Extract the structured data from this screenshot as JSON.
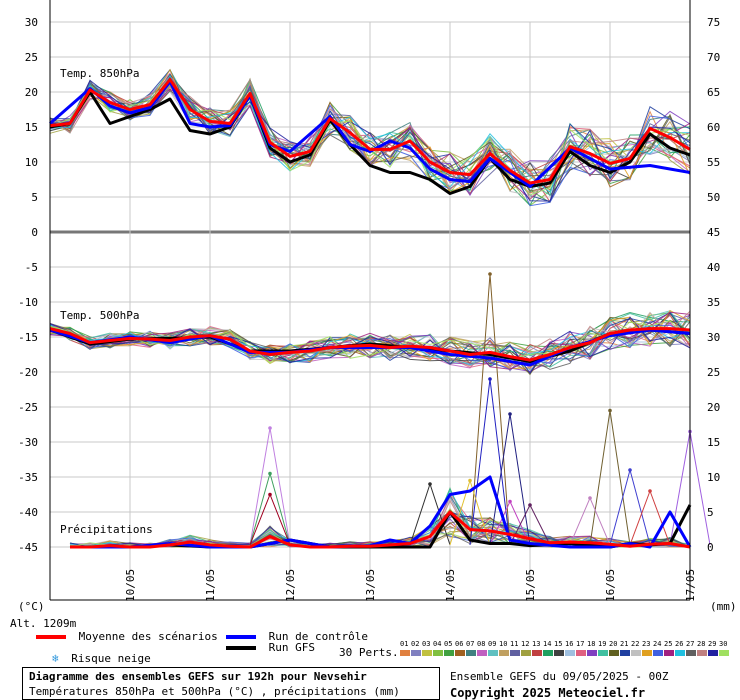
{
  "chart_data": {
    "type": "line",
    "x": [
      "09/05 00Z",
      "09/05 12Z",
      "10/05 00Z",
      "10/05 12Z",
      "11/05 00Z",
      "11/05 12Z",
      "12/05 00Z",
      "12/05 12Z",
      "13/05 00Z",
      "13/05 12Z",
      "14/05 00Z",
      "14/05 12Z",
      "15/05 00Z",
      "15/05 12Z",
      "16/05 00Z",
      "16/05 12Z",
      "17/05 00Z"
    ],
    "date_ticks": [
      "10/05",
      "11/05",
      "12/05",
      "13/05",
      "14/05",
      "15/05",
      "16/05",
      "17/05"
    ],
    "left_axis": {
      "unit": "(°C)",
      "ticks": [
        30,
        25,
        20,
        15,
        10,
        5,
        0,
        -5,
        -10,
        -15,
        -20,
        -25,
        -30,
        -35,
        -40,
        -45
      ]
    },
    "right_axis": {
      "unit": "(mm)",
      "ticks": [
        75,
        70,
        65,
        60,
        55,
        50,
        45,
        40,
        35,
        30,
        25,
        20,
        15,
        10,
        5,
        0
      ]
    },
    "altitude": "Alt. 1209m",
    "panels": {
      "t850": {
        "label": "Temp. 850hPa",
        "ylim": [
          0,
          30
        ],
        "mean": {
          "x": [
            0,
            0.25,
            0.5,
            0.75,
            1,
            1.25,
            1.5,
            1.75,
            2,
            2.25,
            2.5,
            2.75,
            3,
            3.25,
            3.5,
            3.75,
            4,
            4.25,
            4.5,
            4.75,
            5,
            5.25,
            5.5,
            5.75,
            6,
            6.25,
            6.5,
            6.75,
            7,
            7.25,
            7.5,
            7.75,
            8
          ],
          "values": [
            15.2,
            15.5,
            20.3,
            18.5,
            17.5,
            18.2,
            21.8,
            17.5,
            15.8,
            15.5,
            19.8,
            12.8,
            10.8,
            11.5,
            16.2,
            14.2,
            11.8,
            11.8,
            13.0,
            10.0,
            8.5,
            8.2,
            11.2,
            8.8,
            7.0,
            7.5,
            12.2,
            11.2,
            9.8,
            10.5,
            14.8,
            13.5,
            11.8
          ]
        },
        "control": {
          "x": [
            0,
            0.5,
            0.75,
            1,
            1.25,
            1.5,
            1.75,
            2,
            2.25,
            2.5,
            2.75,
            3,
            3.5,
            3.75,
            4,
            4.25,
            4.5,
            4.75,
            5,
            5.25,
            5.5,
            5.75,
            6,
            6.5,
            7,
            7.5,
            8
          ],
          "values": [
            15.5,
            20.5,
            18.0,
            17.0,
            17.8,
            21.5,
            15.5,
            15.0,
            15.2,
            19.5,
            12.5,
            11.5,
            16.5,
            12.5,
            11.5,
            13.0,
            12.0,
            9.0,
            7.5,
            7.2,
            10.5,
            8.5,
            6.5,
            12.0,
            9.0,
            9.5,
            8.5
          ]
        },
        "gfs": {
          "x": [
            0,
            0.25,
            0.5,
            0.75,
            1,
            1.25,
            1.5,
            1.75,
            2,
            2.25,
            2.5,
            2.75,
            3,
            3.25,
            3.5,
            3.75,
            4,
            4.25,
            4.5,
            4.75,
            5,
            5.25,
            5.5,
            5.75,
            6,
            6.25,
            6.5,
            6.75,
            7,
            7.25,
            7.5,
            7.75,
            8
          ],
          "values": [
            15.0,
            15.5,
            20.0,
            15.5,
            16.5,
            17.5,
            19.0,
            14.5,
            14.0,
            15.0,
            19.5,
            12.0,
            10.0,
            11.0,
            16.0,
            12.5,
            9.5,
            8.5,
            8.5,
            7.5,
            5.5,
            6.5,
            10.5,
            7.5,
            6.5,
            7.0,
            11.5,
            9.5,
            8.5,
            10.0,
            14.0,
            12.0,
            11.0
          ]
        },
        "spread": 2.6
      },
      "t500": {
        "label": "Temp. 500hPa",
        "ylim": [
          -45,
          0
        ],
        "mean": {
          "x": [
            0,
            0.25,
            0.5,
            0.75,
            1,
            1.25,
            1.5,
            1.75,
            2,
            2.25,
            2.5,
            2.75,
            3,
            3.25,
            3.5,
            3.75,
            4,
            4.25,
            4.5,
            4.75,
            5,
            5.25,
            5.5,
            5.75,
            6,
            6.25,
            6.5,
            6.75,
            7,
            7.25,
            7.5,
            7.75,
            8
          ],
          "values": [
            -13.8,
            -14.5,
            -15.8,
            -15.5,
            -15.2,
            -15.3,
            -15.5,
            -15.0,
            -14.8,
            -15.3,
            -17.0,
            -17.5,
            -17.2,
            -17.0,
            -16.5,
            -16.3,
            -16.2,
            -16.5,
            -16.3,
            -16.5,
            -17.0,
            -17.5,
            -17.2,
            -17.8,
            -18.3,
            -17.5,
            -16.5,
            -15.8,
            -14.5,
            -14.0,
            -13.8,
            -13.8,
            -14.0
          ]
        },
        "control": {
          "x": [
            0,
            0.5,
            1,
            1.5,
            2,
            2.5,
            3,
            3.5,
            4,
            4.5,
            5,
            5.5,
            6,
            6.5,
            7,
            7.5,
            8
          ],
          "values": [
            -14.0,
            -15.8,
            -15.0,
            -15.8,
            -14.8,
            -17.2,
            -17.2,
            -16.5,
            -16.5,
            -16.5,
            -17.5,
            -18.0,
            -19.0,
            -16.5,
            -14.8,
            -14.0,
            -14.5
          ]
        },
        "gfs": {
          "x": [
            0,
            0.5,
            1,
            1.5,
            2,
            2.5,
            3,
            3.5,
            4,
            4.5,
            5,
            5.5,
            6,
            6.5,
            7,
            7.5,
            8
          ],
          "values": [
            -14.0,
            -16.0,
            -15.3,
            -15.2,
            -15.0,
            -17.0,
            -17.0,
            -16.5,
            -16.0,
            -16.5,
            -17.0,
            -17.5,
            -18.5,
            -17.0,
            -14.5,
            -14.0,
            -14.5
          ]
        },
        "spread": 1.8
      },
      "precip": {
        "label": "Précipitations",
        "ylim": [
          0,
          40
        ],
        "mean": {
          "x": [
            0.25,
            0.5,
            0.75,
            1,
            1.25,
            1.5,
            1.75,
            2,
            2.25,
            2.5,
            2.75,
            3,
            3.25,
            3.5,
            3.75,
            4,
            4.25,
            4.5,
            4.75,
            5,
            5.25,
            5.5,
            5.75,
            6,
            6.25,
            6.5,
            6.75,
            7,
            7.25,
            7.5,
            7.75,
            8
          ],
          "values": [
            0,
            0,
            0.2,
            0,
            0,
            0.3,
            0.7,
            0.3,
            0.1,
            0,
            1.5,
            0.3,
            0,
            0,
            0.1,
            0.1,
            0.3,
            0.5,
            1.5,
            5.0,
            2.5,
            2.3,
            1.8,
            1.2,
            0.6,
            0.7,
            0.6,
            0.4,
            0.1,
            0.4,
            0.5,
            0
          ]
        },
        "control": {
          "x": [
            0.25,
            0.5,
            1,
            1.5,
            2,
            2.5,
            3,
            3.5,
            4,
            4.25,
            4.5,
            4.75,
            5,
            5.25,
            5.5,
            5.75,
            6,
            6.5,
            7,
            7.25,
            7.5,
            7.75,
            8
          ],
          "values": [
            0,
            0,
            0,
            0.5,
            0,
            0,
            1.0,
            0,
            0.2,
            1.0,
            0.5,
            3.0,
            7.5,
            8.0,
            10.0,
            1.0,
            0.5,
            0,
            0,
            0.5,
            0,
            5.0,
            0
          ]
        },
        "gfs": {
          "x": [
            0.25,
            0.5,
            1,
            1.5,
            2,
            2.5,
            3,
            3.5,
            4,
            4.25,
            4.5,
            4.75,
            5,
            5.25,
            5.5,
            5.75,
            6,
            6.5,
            7,
            7.25,
            7.5,
            7.75,
            8
          ],
          "values": [
            0,
            0,
            0,
            0.3,
            0,
            0,
            1.0,
            0,
            0,
            0,
            0,
            0,
            5.0,
            1.0,
            0.5,
            0.5,
            0.2,
            0.5,
            0,
            0.5,
            0.3,
            0.5,
            6.0
          ]
        },
        "spikes": [
          {
            "x": 5.5,
            "value": 39.0,
            "color": "#80602a"
          },
          {
            "x": 5.5,
            "value": 24.0,
            "color": "#2020c0"
          },
          {
            "x": 5.75,
            "value": 19.0,
            "color": "#202080"
          },
          {
            "x": 7.0,
            "value": 19.5,
            "color": "#706030"
          },
          {
            "x": 7.25,
            "value": 11.0,
            "color": "#4040d0"
          },
          {
            "x": 8.0,
            "value": 16.5,
            "color": "#a060e0"
          },
          {
            "x": 2.75,
            "value": 17.0,
            "color": "#c080e0"
          },
          {
            "x": 2.75,
            "value": 10.5,
            "color": "#40a060"
          },
          {
            "x": 2.75,
            "value": 7.5,
            "color": "#a00020"
          },
          {
            "x": 4.75,
            "value": 9.0,
            "color": "#303030"
          },
          {
            "x": 5.25,
            "value": 9.5,
            "color": "#e0c030"
          },
          {
            "x": 5.75,
            "value": 6.5,
            "color": "#c040c0"
          },
          {
            "x": 6.0,
            "value": 6.0,
            "color": "#602060"
          },
          {
            "x": 6.75,
            "value": 7.0,
            "color": "#c080c0"
          },
          {
            "x": 7.5,
            "value": 8.0,
            "color": "#d04040"
          }
        ]
      }
    }
  },
  "legend": {
    "mean_label": "Moyenne des scénarios",
    "mean_color": "#ff0000",
    "control_label": "Run de contrôle",
    "control_color": "#0000ff",
    "gfs_label": "Run GFS",
    "gfs_color": "#000000",
    "snow_label": "Risque neige",
    "snow_icon": "snowflake-icon",
    "perts_label": "30 Perts.",
    "perts_numbers": [
      "01",
      "02",
      "03",
      "04",
      "05",
      "06",
      "07",
      "08",
      "09",
      "10",
      "11",
      "12",
      "13",
      "14",
      "15",
      "16",
      "17",
      "18",
      "19",
      "20",
      "21",
      "22",
      "23",
      "24",
      "25",
      "26",
      "27",
      "28",
      "29",
      "30"
    ],
    "pert_colors": [
      "#e08040",
      "#8080c0",
      "#c0c040",
      "#80c040",
      "#40a040",
      "#a06020",
      "#408080",
      "#c060c0",
      "#60c0c0",
      "#c0a060",
      "#6060a0",
      "#a0a040",
      "#c04040",
      "#20a060",
      "#404040",
      "#a0c0e0",
      "#e06080",
      "#8040c0",
      "#40c0a0",
      "#606020",
      "#2040a0",
      "#c0c0c0",
      "#e0a020",
      "#4060e0",
      "#a02080",
      "#20c0e0",
      "#606060",
      "#c08080",
      "#2020a0",
      "#a0e060"
    ]
  },
  "footer": {
    "title": "Diagramme des ensembles GEFS sur 192h pour Nevsehir",
    "subtitle": "Températures 850hPa et 500hPa (°C) , précipitations (mm)",
    "run": "Ensemble GEFS du 09/05/2025 - 00Z",
    "copyright": "Copyright 2025 Meteociel.fr"
  }
}
